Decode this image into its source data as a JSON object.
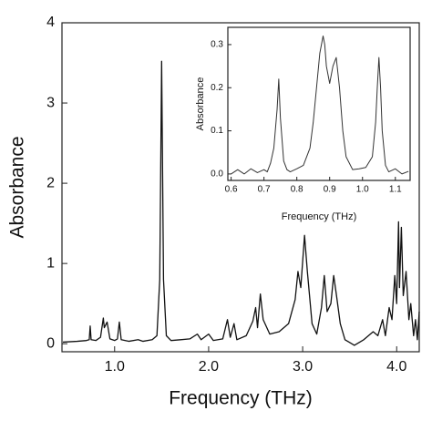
{
  "chart_data": [
    {
      "type": "line",
      "xlabel": "Frequency (THz)",
      "ylabel": "Absorbance",
      "xlim": [
        0.44,
        4.24
      ],
      "ylim": [
        -0.1,
        4
      ],
      "xticks": [
        {
          "value": 1,
          "label": "1.0"
        },
        {
          "value": 2,
          "label": "2.0"
        },
        {
          "value": 3,
          "label": "3.0"
        },
        {
          "value": 4,
          "label": "4.0"
        }
      ],
      "yticks": [
        0,
        1,
        2,
        3,
        4
      ],
      "x": [
        0.45,
        0.6,
        0.7,
        0.73,
        0.74,
        0.75,
        0.8,
        0.85,
        0.88,
        0.89,
        0.92,
        0.95,
        1.0,
        1.03,
        1.05,
        1.07,
        1.15,
        1.25,
        1.3,
        1.4,
        1.45,
        1.48,
        1.5,
        1.52,
        1.55,
        1.6,
        1.7,
        1.8,
        1.88,
        1.92,
        2.0,
        2.05,
        2.15,
        2.2,
        2.23,
        2.27,
        2.3,
        2.4,
        2.47,
        2.5,
        2.52,
        2.55,
        2.58,
        2.65,
        2.75,
        2.85,
        2.92,
        2.95,
        2.98,
        3.02,
        3.05,
        3.1,
        3.15,
        3.2,
        3.23,
        3.26,
        3.3,
        3.33,
        3.36,
        3.4,
        3.45,
        3.55,
        3.65,
        3.75,
        3.8,
        3.85,
        3.88,
        3.92,
        3.95,
        3.98,
        4.0,
        4.02,
        4.03,
        4.05,
        4.07,
        4.1,
        4.13,
        4.15,
        4.18,
        4.2,
        4.22,
        4.24
      ],
      "series": [
        {
          "color": "#111111",
          "values": [
            0.02,
            0.03,
            0.04,
            0.05,
            0.22,
            0.05,
            0.04,
            0.08,
            0.32,
            0.2,
            0.27,
            0.06,
            0.04,
            0.06,
            0.27,
            0.05,
            0.03,
            0.05,
            0.03,
            0.05,
            0.1,
            0.8,
            3.52,
            0.8,
            0.1,
            0.04,
            0.05,
            0.06,
            0.12,
            0.05,
            0.12,
            0.04,
            0.06,
            0.3,
            0.08,
            0.25,
            0.05,
            0.1,
            0.28,
            0.45,
            0.2,
            0.62,
            0.3,
            0.12,
            0.15,
            0.25,
            0.55,
            0.9,
            0.7,
            1.35,
            0.9,
            0.25,
            0.12,
            0.45,
            0.85,
            0.4,
            0.5,
            0.85,
            0.6,
            0.25,
            0.05,
            -0.02,
            0.05,
            0.15,
            0.1,
            0.3,
            0.1,
            0.45,
            0.3,
            0.85,
            0.5,
            1.52,
            0.7,
            1.45,
            0.6,
            0.9,
            0.3,
            0.5,
            0.1,
            0.3,
            0.05,
            0.4
          ]
        }
      ]
    },
    {
      "type": "line",
      "xlabel": "Frequency (THz)",
      "ylabel": "Absorbance",
      "xlim": [
        0.59,
        1.145
      ],
      "ylim": [
        -0.015,
        0.34
      ],
      "xticks": [
        0.6,
        0.7,
        0.8,
        0.9,
        {
          "value": 1,
          "label": "1.0"
        },
        1.1
      ],
      "yticks": [
        {
          "value": 0,
          "label": "0.0"
        },
        0.1,
        0.2,
        0.3
      ],
      "x": [
        0.6,
        0.62,
        0.64,
        0.66,
        0.68,
        0.7,
        0.71,
        0.72,
        0.73,
        0.74,
        0.745,
        0.75,
        0.76,
        0.77,
        0.78,
        0.8,
        0.82,
        0.84,
        0.85,
        0.86,
        0.87,
        0.88,
        0.885,
        0.89,
        0.9,
        0.91,
        0.92,
        0.93,
        0.94,
        0.95,
        0.97,
        0.99,
        1.01,
        1.03,
        1.04,
        1.045,
        1.05,
        1.055,
        1.06,
        1.07,
        1.08,
        1.1,
        1.12,
        1.14
      ],
      "series": [
        {
          "color": "#333333",
          "values": [
            0.0,
            0.01,
            0.0,
            0.012,
            0.003,
            0.01,
            0.005,
            0.025,
            0.06,
            0.15,
            0.22,
            0.13,
            0.03,
            0.01,
            0.005,
            0.012,
            0.02,
            0.06,
            0.12,
            0.2,
            0.28,
            0.32,
            0.3,
            0.25,
            0.21,
            0.25,
            0.27,
            0.2,
            0.1,
            0.04,
            0.01,
            0.012,
            0.015,
            0.04,
            0.12,
            0.2,
            0.27,
            0.2,
            0.1,
            0.02,
            0.005,
            0.012,
            0.0,
            0.006
          ]
        }
      ]
    }
  ]
}
